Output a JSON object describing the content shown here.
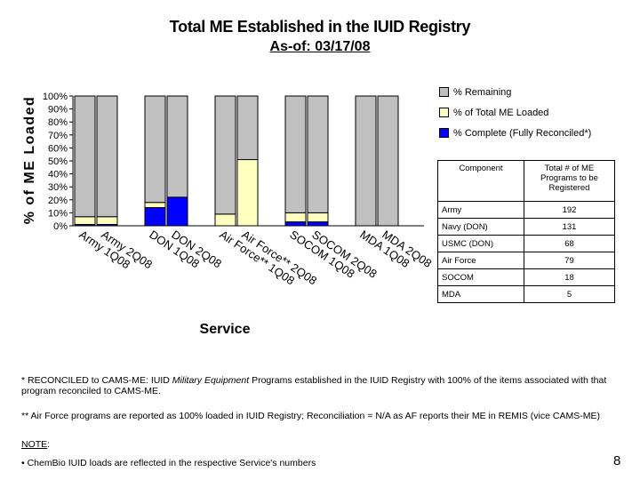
{
  "title": "Total ME Established in the IUID Registry",
  "subtitle": "As-of: 03/17/08",
  "chart_data": {
    "type": "bar",
    "stacked": true,
    "ylabel": "% of ME Loaded",
    "xlabel": "Service",
    "ylim": [
      0,
      100
    ],
    "yticks": [
      "0%",
      "10%",
      "20%",
      "30%",
      "40%",
      "50%",
      "60%",
      "70%",
      "80%",
      "90%",
      "100%"
    ],
    "categories": [
      "Army 1Q08",
      "Army 2Q08",
      "DON 1Q08",
      "DON 2Q08",
      "Air Force** 1Q08",
      "Air Force** 2Q08",
      "SOCOM 1Q08",
      "SOCOM 2Q08",
      "MDA 1Q08",
      "MDA 2Q08"
    ],
    "series": [
      {
        "name": "% Complete (Fully Reconciled*)",
        "color": "#0000ff",
        "values": [
          1,
          1,
          14,
          22,
          0,
          0,
          3,
          3,
          0,
          0
        ]
      },
      {
        "name": "% of Total ME Loaded",
        "color": "#ffffc0",
        "values": [
          6,
          6,
          4,
          0,
          9,
          51,
          7,
          7,
          0,
          0
        ]
      },
      {
        "name": "% Remaining",
        "color": "#c0c0c0",
        "values": [
          93,
          93,
          82,
          78,
          91,
          49,
          90,
          90,
          100,
          100
        ]
      }
    ],
    "legend_order": [
      2,
      1,
      0
    ],
    "legend_position": "right"
  },
  "table": {
    "headers": [
      "Component",
      "Total # of ME Programs to be Registered"
    ],
    "rows": [
      [
        "Army",
        "192"
      ],
      [
        "Navy (DON)",
        "131"
      ],
      [
        "USMC (DON)",
        "68"
      ],
      [
        "Air Force",
        "79"
      ],
      [
        "SOCOM",
        "18"
      ],
      [
        "MDA",
        "5"
      ]
    ]
  },
  "notes": {
    "reconciled_prefix": "* RECONCILED to CAMS-ME: IUID ",
    "reconciled_italic": "Military Equipment",
    "reconciled_suffix": " Programs established in the IUID Registry with 100% of the items associated with that program reconciled to CAMS-ME.",
    "airforce": "** Air Force programs are reported as 100% loaded in IUID Registry; Reconciliation = N/A as AF reports their ME in REMIS (vice CAMS-ME)",
    "note_label": "NOTE",
    "note_colon": ":",
    "chembio": "• ChemBio IUID loads are reflected in the respective Service's numbers"
  },
  "page_number": "8"
}
